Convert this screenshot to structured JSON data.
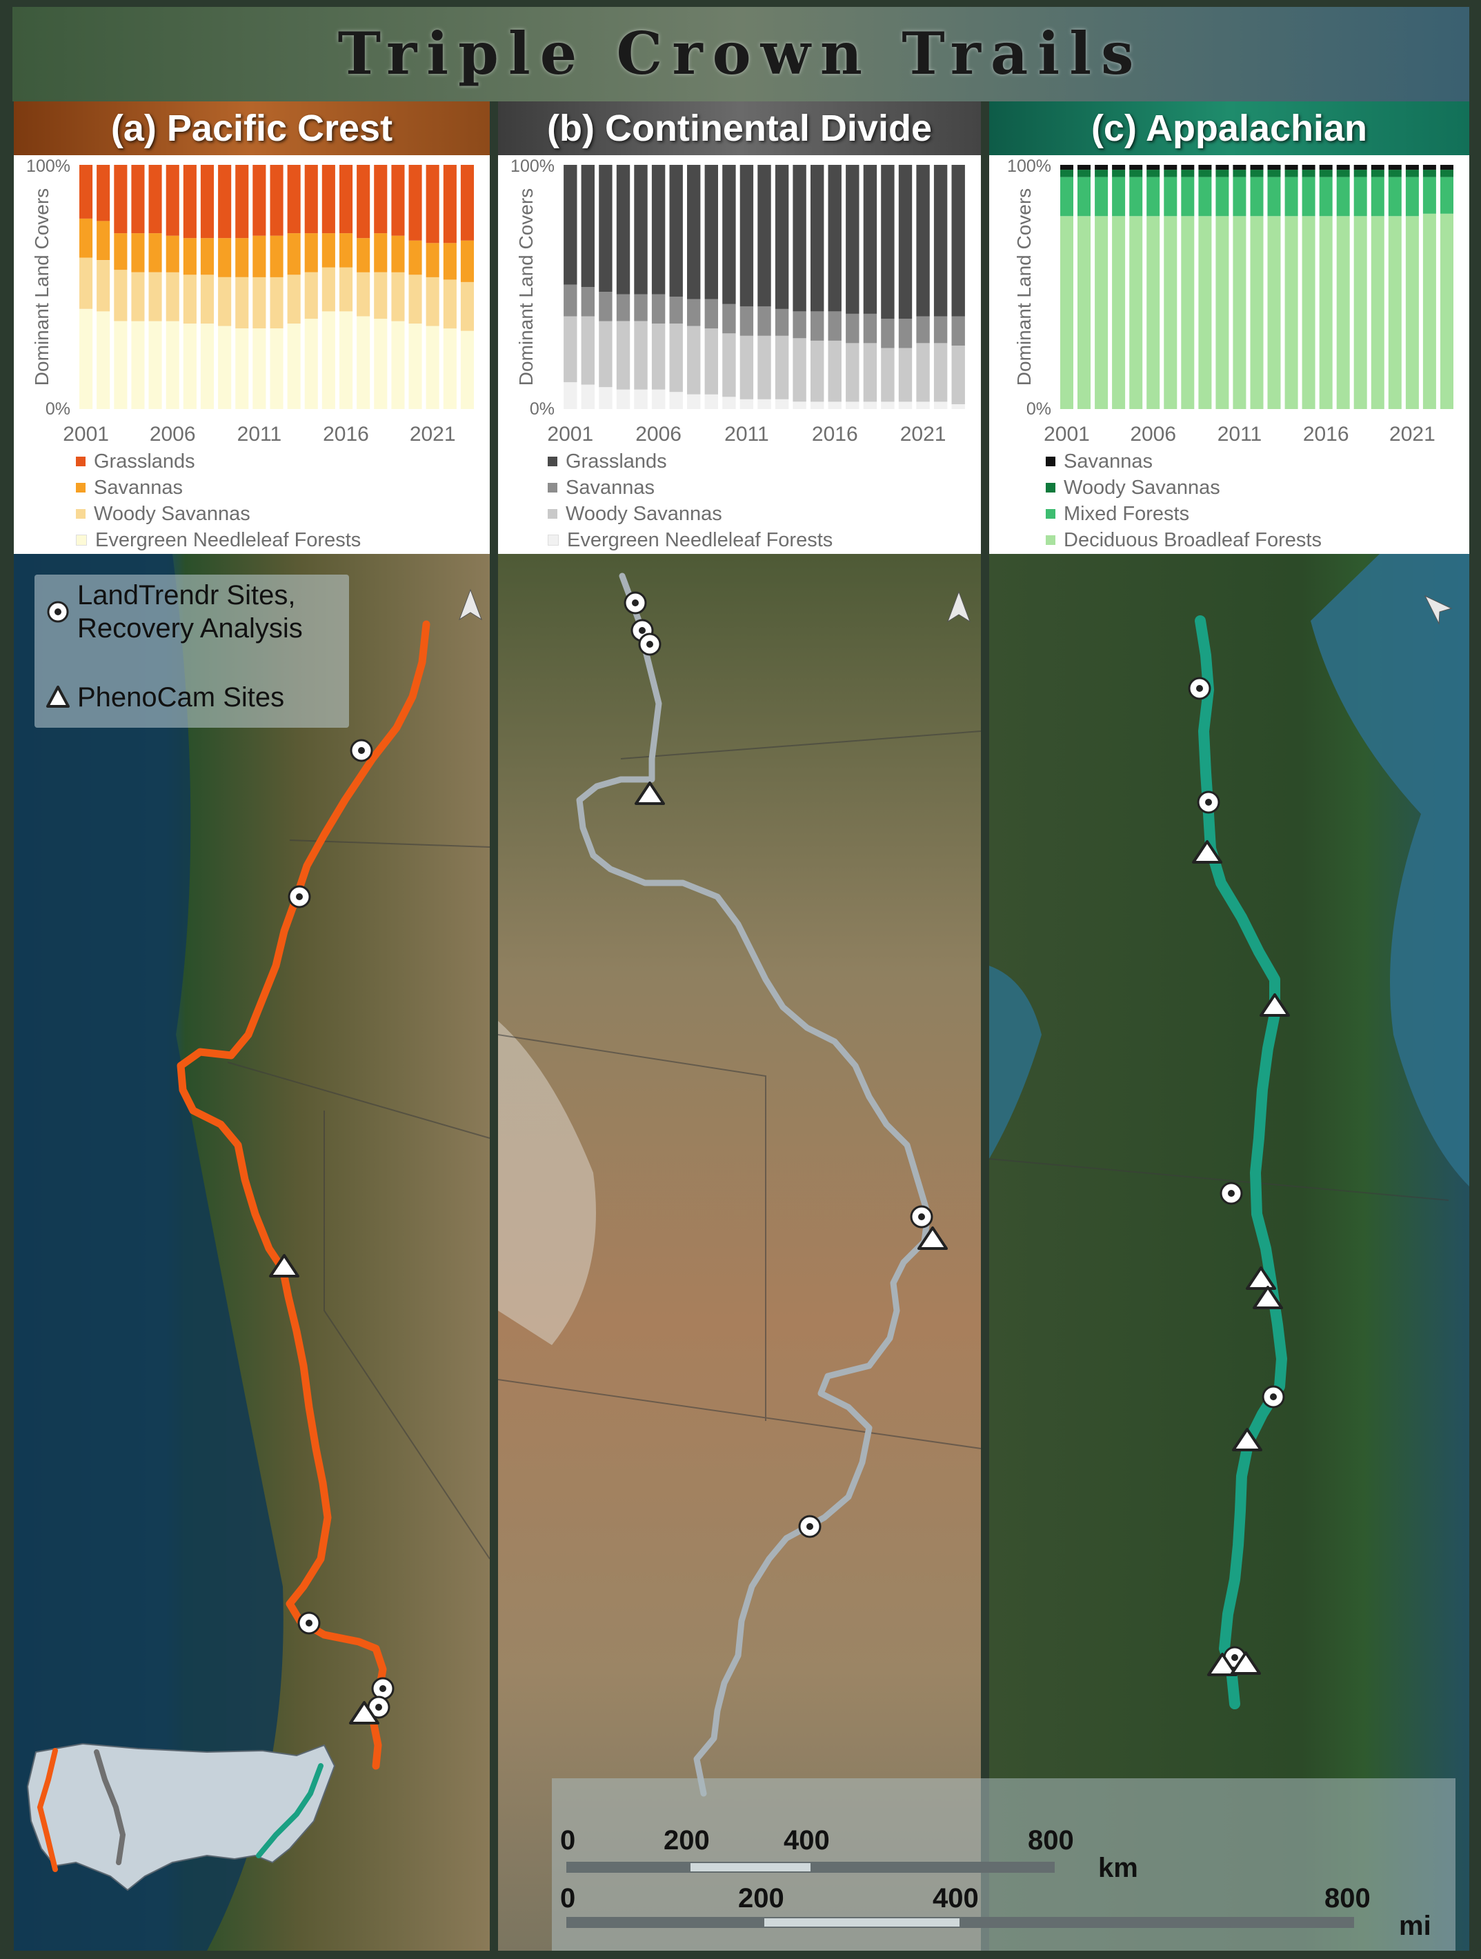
{
  "title": "Triple Crown Trails",
  "colors": {
    "pacific_header": "#9a4f1c",
    "continental_header": "#5c5c5c",
    "appalachian_header": "#1f7d64",
    "pacific_trail": "#f25a12",
    "continental_trail": "#a9b2b8",
    "appalachian_trail": "#1aa083"
  },
  "panels": [
    {
      "header": "(a) Pacific Crest",
      "legend": [
        {
          "name": "Grasslands",
          "color": "#e6551b"
        },
        {
          "name": "Savannas",
          "color": "#f7a023"
        },
        {
          "name": "Woody Savannas",
          "color": "#f9d995"
        },
        {
          "name": "Evergreen Needleleaf Forests",
          "color": "#fdfad7"
        }
      ]
    },
    {
      "header": "(b) Continental Divide",
      "legend": [
        {
          "name": "Grasslands",
          "color": "#4a4a4a"
        },
        {
          "name": "Savannas",
          "color": "#8d8d8d"
        },
        {
          "name": "Woody Savannas",
          "color": "#c9c9c9"
        },
        {
          "name": "Evergreen Needleleaf Forests",
          "color": "#f1f1f1"
        }
      ]
    },
    {
      "header": "(c) Appalachian",
      "legend": [
        {
          "name": "Savannas",
          "color": "#111111"
        },
        {
          "name": "Woody Savannas",
          "color": "#0f7a3c"
        },
        {
          "name": "Mixed Forests",
          "color": "#3dbd70"
        },
        {
          "name": "Deciduous Broadleaf Forests",
          "color": "#a9e29f"
        }
      ]
    }
  ],
  "chart_data": [
    {
      "type": "bar",
      "stacked": true,
      "ylabel": "Dominant Land Covers",
      "yticks": [
        "0%",
        "100%"
      ],
      "ylim": [
        0,
        100
      ],
      "xticks": [
        "2001",
        "2006",
        "2011",
        "2016",
        "2021"
      ],
      "categories": [
        2001,
        2002,
        2003,
        2004,
        2005,
        2006,
        2007,
        2008,
        2009,
        2010,
        2011,
        2012,
        2013,
        2014,
        2015,
        2016,
        2017,
        2018,
        2019,
        2020,
        2021,
        2022,
        2023
      ],
      "series": [
        {
          "name": "Evergreen Needleleaf Forests",
          "values": [
            41,
            40,
            36,
            36,
            36,
            36,
            35,
            35,
            34,
            33,
            33,
            33,
            35,
            37,
            40,
            40,
            38,
            37,
            36,
            35,
            34,
            33,
            32
          ]
        },
        {
          "name": "Woody Savannas",
          "values": [
            21,
            21,
            21,
            20,
            20,
            20,
            20,
            20,
            20,
            21,
            21,
            21,
            20,
            19,
            18,
            18,
            18,
            19,
            20,
            20,
            20,
            20,
            20
          ]
        },
        {
          "name": "Savannas",
          "values": [
            16,
            16,
            15,
            16,
            16,
            15,
            15,
            15,
            16,
            16,
            17,
            17,
            17,
            16,
            14,
            14,
            14,
            16,
            15,
            14,
            14,
            15,
            17
          ]
        },
        {
          "name": "Grasslands",
          "values": [
            22,
            23,
            28,
            28,
            28,
            29,
            30,
            30,
            30,
            30,
            29,
            29,
            28,
            28,
            28,
            28,
            30,
            28,
            29,
            31,
            32,
            32,
            31
          ]
        }
      ]
    },
    {
      "type": "bar",
      "stacked": true,
      "ylabel": "Dominant Land Covers",
      "yticks": [
        "0%",
        "100%"
      ],
      "ylim": [
        0,
        100
      ],
      "xticks": [
        "2001",
        "2006",
        "2011",
        "2016",
        "2021"
      ],
      "categories": [
        2001,
        2002,
        2003,
        2004,
        2005,
        2006,
        2007,
        2008,
        2009,
        2010,
        2011,
        2012,
        2013,
        2014,
        2015,
        2016,
        2017,
        2018,
        2019,
        2020,
        2021,
        2022,
        2023
      ],
      "series": [
        {
          "name": "Evergreen Needleleaf Forests",
          "values": [
            11,
            10,
            9,
            8,
            8,
            8,
            7,
            6,
            6,
            5,
            4,
            4,
            4,
            3,
            3,
            3,
            3,
            3,
            3,
            3,
            3,
            3,
            2
          ]
        },
        {
          "name": "Woody Savannas",
          "values": [
            27,
            28,
            27,
            28,
            28,
            27,
            28,
            28,
            27,
            26,
            26,
            26,
            26,
            26,
            25,
            25,
            24,
            24,
            22,
            22,
            24,
            24,
            24
          ]
        },
        {
          "name": "Savannas",
          "values": [
            13,
            12,
            12,
            11,
            11,
            12,
            11,
            11,
            12,
            12,
            12,
            12,
            11,
            11,
            12,
            12,
            12,
            12,
            12,
            12,
            11,
            11,
            12
          ]
        },
        {
          "name": "Grasslands",
          "values": [
            49,
            50,
            52,
            53,
            53,
            53,
            54,
            55,
            55,
            57,
            58,
            58,
            59,
            60,
            60,
            60,
            61,
            61,
            63,
            63,
            62,
            62,
            62
          ]
        }
      ]
    },
    {
      "type": "bar",
      "stacked": true,
      "ylabel": "Dominant Land Covers",
      "yticks": [
        "0%",
        "100%"
      ],
      "ylim": [
        0,
        100
      ],
      "xticks": [
        "2001",
        "2006",
        "2011",
        "2016",
        "2021"
      ],
      "categories": [
        2001,
        2002,
        2003,
        2004,
        2005,
        2006,
        2007,
        2008,
        2009,
        2010,
        2011,
        2012,
        2013,
        2014,
        2015,
        2016,
        2017,
        2018,
        2019,
        2020,
        2021,
        2022,
        2023
      ],
      "series": [
        {
          "name": "Deciduous Broadleaf Forests",
          "values": [
            79,
            79,
            79,
            79,
            79,
            79,
            79,
            79,
            79,
            79,
            79,
            79,
            79,
            79,
            79,
            79,
            79,
            79,
            79,
            79,
            79,
            80,
            80
          ]
        },
        {
          "name": "Mixed Forests",
          "values": [
            16,
            16,
            16,
            16,
            16,
            16,
            16,
            16,
            16,
            16,
            16,
            16,
            16,
            16,
            16,
            16,
            16,
            16,
            16,
            16,
            16,
            15,
            15
          ]
        },
        {
          "name": "Woody Savannas",
          "values": [
            3,
            3,
            3,
            3,
            3,
            3,
            3,
            3,
            3,
            3,
            3,
            3,
            3,
            3,
            3,
            3,
            3,
            3,
            3,
            3,
            3,
            3,
            3
          ]
        },
        {
          "name": "Savannas",
          "values": [
            2,
            2,
            2,
            2,
            2,
            2,
            2,
            2,
            2,
            2,
            2,
            2,
            2,
            2,
            2,
            2,
            2,
            2,
            2,
            2,
            2,
            2,
            2
          ]
        }
      ]
    }
  ],
  "map_legend": {
    "landtrendr_label_1": "LandTrendr Sites,",
    "landtrendr_label_2": "Recovery Analysis",
    "phenocam_label": "PhenoCam Sites"
  },
  "scale_bar": {
    "km_ticks": [
      "0",
      "200",
      "400",
      "800"
    ],
    "km_unit": "km",
    "mi_ticks": [
      "0",
      "200",
      "400",
      "800"
    ],
    "mi_unit": "mi"
  }
}
